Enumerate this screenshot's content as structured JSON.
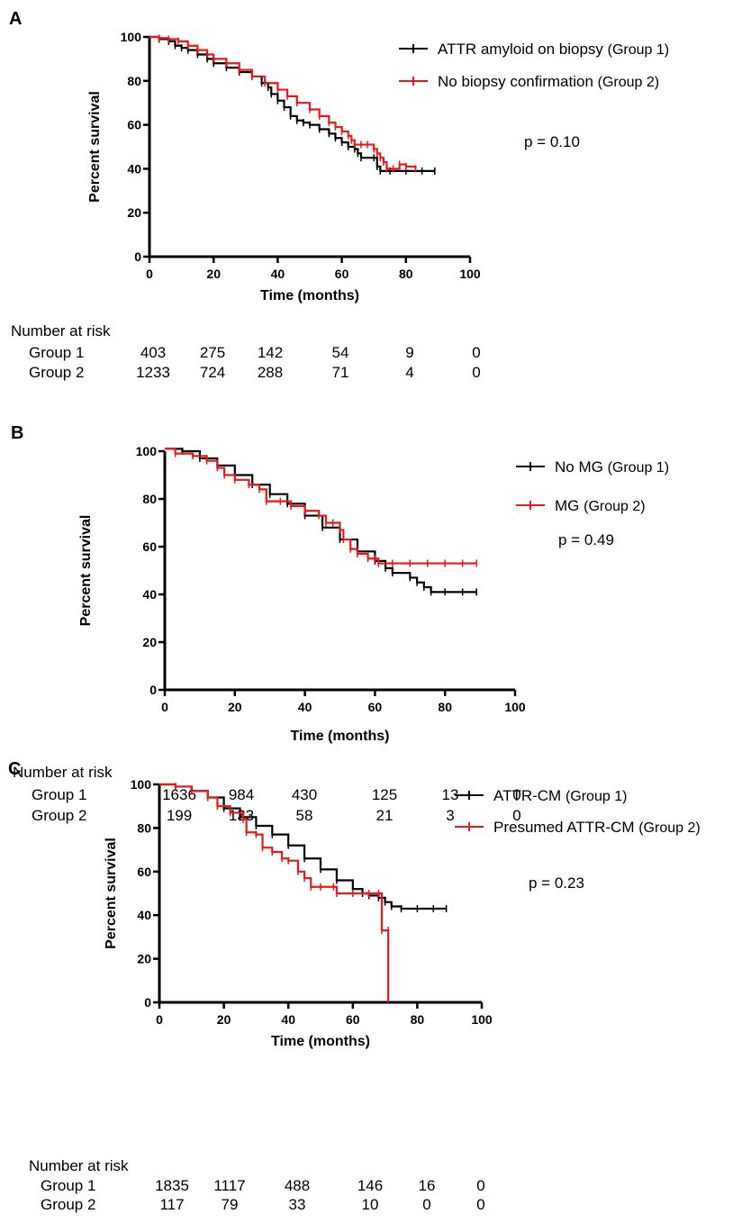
{
  "colors": {
    "group1": "#000000",
    "group2": "#e8191c"
  },
  "chart_data": [
    {
      "type": "line",
      "panel_label": "A",
      "xlabel": "Time (months)",
      "ylabel": "Percent survival",
      "xlim": [
        0,
        100
      ],
      "ylim": [
        0,
        100
      ],
      "xticks": [
        "0",
        "20",
        "40",
        "60",
        "80",
        "100"
      ],
      "yticks": [
        "0",
        "20",
        "40",
        "60",
        "80",
        "100"
      ],
      "grid": false,
      "legend_position": "top-right",
      "p_value": "p = 0.10",
      "series": [
        {
          "legend_main": "ATTR amyloid on biopsy",
          "legend_group": "(Group 1)",
          "color_key": "group1",
          "points": [
            [
              0,
              100
            ],
            [
              3,
              99
            ],
            [
              6,
              98
            ],
            [
              8,
              96
            ],
            [
              10,
              95
            ],
            [
              12,
              94
            ],
            [
              15,
              92
            ],
            [
              18,
              90
            ],
            [
              20,
              88
            ],
            [
              24,
              86
            ],
            [
              28,
              84
            ],
            [
              32,
              82
            ],
            [
              35,
              79
            ],
            [
              37,
              77
            ],
            [
              38,
              74
            ],
            [
              40,
              71
            ],
            [
              42,
              68
            ],
            [
              44,
              64
            ],
            [
              46,
              62
            ],
            [
              48,
              61
            ],
            [
              50,
              60
            ],
            [
              53,
              58
            ],
            [
              56,
              56
            ],
            [
              58,
              54
            ],
            [
              60,
              52
            ],
            [
              62,
              50
            ],
            [
              64,
              49
            ],
            [
              65,
              47
            ],
            [
              66,
              45
            ],
            [
              70,
              45
            ],
            [
              71,
              41
            ],
            [
              72,
              39
            ],
            [
              75,
              39
            ],
            [
              80,
              39
            ],
            [
              85,
              39
            ],
            [
              89,
              39
            ]
          ]
        },
        {
          "legend_main": "No biopsy confirmation",
          "legend_group": "(Group 2)",
          "color_key": "group2",
          "points": [
            [
              0,
              100
            ],
            [
              3,
              99.5
            ],
            [
              6,
              99
            ],
            [
              9,
              98
            ],
            [
              12,
              96
            ],
            [
              15,
              94
            ],
            [
              18,
              92
            ],
            [
              20,
              90
            ],
            [
              24,
              88
            ],
            [
              28,
              85
            ],
            [
              32,
              82
            ],
            [
              36,
              79
            ],
            [
              40,
              76
            ],
            [
              43,
              73
            ],
            [
              46,
              70
            ],
            [
              50,
              67
            ],
            [
              53,
              64
            ],
            [
              56,
              61
            ],
            [
              58,
              59
            ],
            [
              60,
              57
            ],
            [
              62,
              55
            ],
            [
              63,
              53
            ],
            [
              64,
              51
            ],
            [
              66,
              51
            ],
            [
              68,
              51
            ],
            [
              70,
              49
            ],
            [
              71,
              47
            ],
            [
              72,
              45
            ],
            [
              73,
              43
            ],
            [
              74,
              40
            ],
            [
              76,
              40
            ],
            [
              78,
              42
            ],
            [
              80,
              41
            ],
            [
              83,
              40
            ]
          ]
        }
      ],
      "risk_table": {
        "title": "Number at risk",
        "rows": [
          {
            "label": "Group 1",
            "values": [
              "403",
              "275",
              "142",
              "54",
              "9",
              "0"
            ]
          },
          {
            "label": "Group 2",
            "values": [
              "1233",
              "724",
              "288",
              "71",
              "4",
              "0"
            ]
          }
        ]
      }
    },
    {
      "type": "line",
      "panel_label": "B",
      "xlabel": "Time (months)",
      "ylabel": "Percent survival",
      "xlim": [
        0,
        100
      ],
      "ylim": [
        0,
        100
      ],
      "xticks": [
        "0",
        "20",
        "40",
        "60",
        "80",
        "100"
      ],
      "yticks": [
        "0",
        "20",
        "40",
        "60",
        "80",
        "100"
      ],
      "grid": false,
      "legend_position": "top-right",
      "p_value": "p = 0.49",
      "series": [
        {
          "legend_main": "No MG",
          "legend_group": "(Group 1)",
          "color_key": "group1",
          "points": [
            [
              0,
              101
            ],
            [
              5,
              100
            ],
            [
              10,
              97
            ],
            [
              15,
              94
            ],
            [
              20,
              90
            ],
            [
              25,
              86
            ],
            [
              30,
              82
            ],
            [
              35,
              78
            ],
            [
              40,
              73
            ],
            [
              45,
              68
            ],
            [
              50,
              63
            ],
            [
              55,
              58
            ],
            [
              60,
              54
            ],
            [
              63,
              51
            ],
            [
              65,
              49
            ],
            [
              70,
              47
            ],
            [
              72,
              45
            ],
            [
              74,
              43
            ],
            [
              76,
              41
            ],
            [
              80,
              41
            ],
            [
              85,
              41
            ],
            [
              89,
              41
            ]
          ]
        },
        {
          "legend_main": "MG",
          "legend_group": "(Group 2)",
          "color_key": "group2",
          "points": [
            [
              0,
              101
            ],
            [
              3,
              99
            ],
            [
              8,
              98
            ],
            [
              12,
              96
            ],
            [
              15,
              93
            ],
            [
              17,
              90
            ],
            [
              20,
              88
            ],
            [
              24,
              86
            ],
            [
              27,
              84
            ],
            [
              29,
              79
            ],
            [
              33,
              79
            ],
            [
              36,
              77
            ],
            [
              40,
              75
            ],
            [
              44,
              73
            ],
            [
              46,
              70
            ],
            [
              48,
              70
            ],
            [
              50,
              67
            ],
            [
              51,
              63
            ],
            [
              53,
              59
            ],
            [
              55,
              57
            ],
            [
              58,
              55
            ],
            [
              60,
              55
            ],
            [
              61,
              53
            ],
            [
              65,
              53
            ],
            [
              70,
              53
            ],
            [
              75,
              53
            ],
            [
              80,
              53
            ],
            [
              85,
              53
            ],
            [
              89,
              53
            ]
          ]
        }
      ],
      "risk_table": {
        "title": "Number at risk",
        "rows": [
          {
            "label": "Group 1",
            "values": [
              "1636",
              "984",
              "430",
              "125",
              "13",
              "0"
            ]
          },
          {
            "label": "Group 2",
            "values": [
              "199",
              "133",
              "58",
              "21",
              "3",
              "0"
            ]
          }
        ]
      }
    },
    {
      "type": "line",
      "panel_label": "C",
      "xlabel": "Time (months)",
      "ylabel": "Percent survival",
      "xlim": [
        0,
        100
      ],
      "ylim": [
        0,
        100
      ],
      "xticks": [
        "0",
        "20",
        "40",
        "60",
        "80",
        "100"
      ],
      "yticks": [
        "0",
        "20",
        "40",
        "60",
        "80",
        "100"
      ],
      "grid": false,
      "legend_position": "top-right",
      "p_value": "p = 0.23",
      "series": [
        {
          "legend_main": "ATTR-CM",
          "legend_group": "(Group 1)",
          "color_key": "group1",
          "points": [
            [
              0,
              100
            ],
            [
              5,
              99
            ],
            [
              10,
              97
            ],
            [
              15,
              94
            ],
            [
              20,
              89
            ],
            [
              25,
              85
            ],
            [
              30,
              81
            ],
            [
              35,
              77
            ],
            [
              40,
              72
            ],
            [
              45,
              66
            ],
            [
              50,
              61
            ],
            [
              55,
              56
            ],
            [
              60,
              52
            ],
            [
              63,
              50
            ],
            [
              65,
              49
            ],
            [
              68,
              48
            ],
            [
              70,
              46
            ],
            [
              72,
              44
            ],
            [
              75,
              43
            ],
            [
              80,
              43
            ],
            [
              85,
              43
            ],
            [
              89,
              43
            ]
          ]
        },
        {
          "legend_main": "Presumed ATTR-CM",
          "legend_group": "(Group 2)",
          "color_key": "group2",
          "points": [
            [
              0,
              100
            ],
            [
              5,
              99
            ],
            [
              10,
              97
            ],
            [
              15,
              94
            ],
            [
              18,
              90
            ],
            [
              22,
              87
            ],
            [
              26,
              84
            ],
            [
              27,
              78
            ],
            [
              30,
              77
            ],
            [
              32,
              71
            ],
            [
              35,
              69
            ],
            [
              38,
              66
            ],
            [
              40,
              65
            ],
            [
              43,
              60
            ],
            [
              45,
              57
            ],
            [
              47,
              53
            ],
            [
              50,
              53
            ],
            [
              54,
              53
            ],
            [
              55,
              50
            ],
            [
              60,
              50
            ],
            [
              65,
              50
            ],
            [
              68,
              50
            ],
            [
              69,
              48
            ],
            [
              69,
              33
            ],
            [
              71,
              33
            ],
            [
              71,
              0
            ]
          ]
        }
      ],
      "risk_table": {
        "title": "Number at risk",
        "rows": [
          {
            "label": "Group 1",
            "values": [
              "1835",
              "1117",
              "488",
              "146",
              "16",
              "0"
            ]
          },
          {
            "label": "Group 2",
            "values": [
              "117",
              "79",
              "33",
              "10",
              "0",
              "0"
            ]
          }
        ]
      }
    }
  ]
}
